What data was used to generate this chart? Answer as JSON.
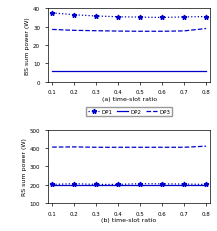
{
  "x": [
    0.1,
    0.2,
    0.3,
    0.4,
    0.5,
    0.6,
    0.7,
    0.8
  ],
  "top": {
    "DP1": [
      37.5,
      36.5,
      35.8,
      35.4,
      35.2,
      35.0,
      35.3,
      35.5
    ],
    "DP2": [
      6.0,
      6.0,
      6.0,
      6.0,
      6.0,
      6.0,
      6.0,
      6.0
    ],
    "DP3": [
      28.5,
      28.0,
      27.8,
      27.6,
      27.5,
      27.5,
      27.7,
      29.0
    ],
    "ylabel": "BS sum power (W)",
    "xlabel": "(a) time-slot ratio",
    "ylim": [
      0,
      40
    ],
    "yticks": [
      0,
      10,
      20,
      30,
      40
    ]
  },
  "bottom": {
    "DP1": [
      202,
      206,
      202,
      202,
      206,
      205,
      204,
      202
    ],
    "DP2": [
      200,
      200,
      200,
      200,
      200,
      200,
      200,
      200
    ],
    "DP3": [
      405,
      406,
      404,
      404,
      404,
      404,
      404,
      410
    ],
    "ylabel": "RS sum power (W)",
    "xlabel": "(b) time-slot ratio",
    "ylim": [
      100,
      500
    ],
    "yticks": [
      100,
      200,
      300,
      400,
      500
    ]
  },
  "legend": {
    "DP1_label": "DP1",
    "DP2_label": "DP2",
    "DP3_label": "DP3"
  },
  "color": "#0000cc",
  "xticks": [
    0.1,
    0.2,
    0.3,
    0.4,
    0.5,
    0.6,
    0.7,
    0.8
  ],
  "xtick_labels": [
    "0.1",
    "0.2",
    "0.3",
    "0.4",
    "0.5",
    "0.6",
    "0.7",
    "0.8"
  ]
}
